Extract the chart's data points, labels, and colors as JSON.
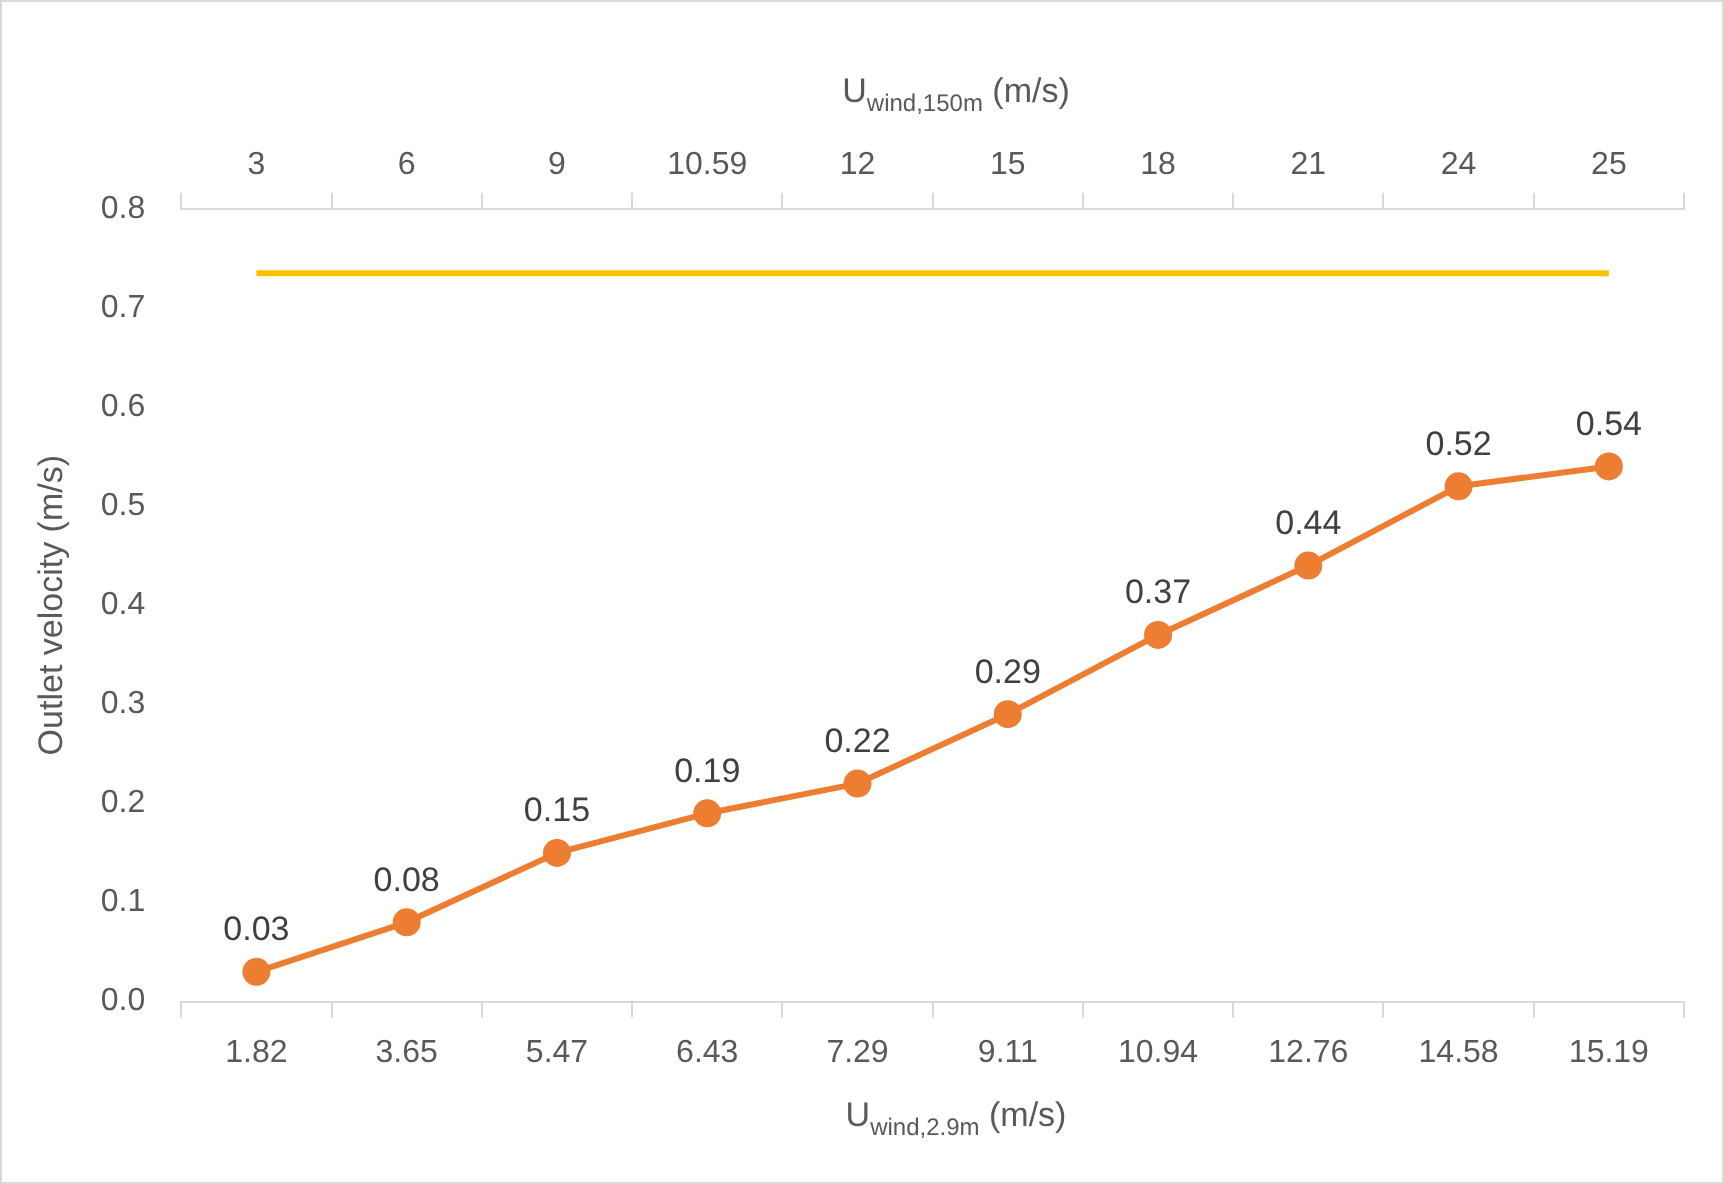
{
  "chart_data": {
    "type": "line",
    "xlabel": "U$_{wind,2.9m}$ (m/s)",
    "x2label": "U$_{wind,150m}$ (m/s)",
    "ylabel": "Outlet velocity (m/s)",
    "categories": [
      "1.82",
      "3.65",
      "5.47",
      "6.43",
      "7.29",
      "9.11",
      "10.94",
      "12.76",
      "14.58",
      "15.19"
    ],
    "annotations": [
      "3",
      "6",
      "9",
      "10.59",
      "12",
      "15",
      "18",
      "21",
      "24",
      "25"
    ],
    "series": [
      {
        "color": "#ed7d31",
        "marker": "circle",
        "values": [
          0.03,
          0.08,
          0.15,
          0.19,
          0.22,
          0.29,
          0.37,
          0.44,
          0.52,
          0.54
        ],
        "value_labels": [
          "0.03",
          "0.08",
          "0.15",
          "0.19",
          "0.22",
          "0.29",
          "0.37",
          "0.44",
          "0.52",
          "0.54"
        ]
      },
      {
        "color": "#ffc000",
        "marker": "none",
        "values": [
          0.735,
          0.735,
          0.735,
          0.735,
          0.735,
          0.735,
          0.735,
          0.735,
          0.735,
          0.735
        ]
      }
    ],
    "ylim": [
      0,
      0.8
    ],
    "yticks": [
      {
        "value": 0,
        "label": "0.0"
      },
      0.1,
      0.2,
      0.3,
      0.4,
      0.5,
      0.6,
      0.7,
      0.8
    ],
    "grid": false,
    "legend": false
  }
}
